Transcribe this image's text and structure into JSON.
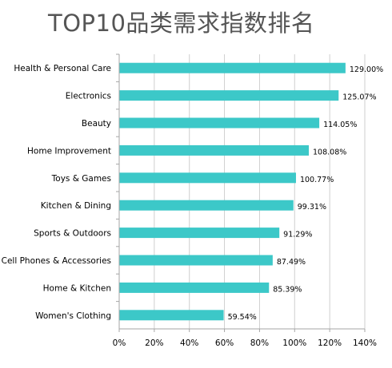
{
  "title": "TOP10品类需求指数排名",
  "colors": {
    "bar": "#3cc8c8",
    "grid": "#cfcfcf",
    "axis": "#a6a6a6"
  },
  "chart_data": {
    "type": "bar",
    "orientation": "horizontal",
    "title": "TOP10品类需求指数排名",
    "categories": [
      "Health & Personal Care",
      "Electronics",
      "Beauty",
      "Home Improvement",
      "Toys & Games",
      "Kitchen & Dining",
      "Sports & Outdoors",
      "Cell Phones & Accessories",
      "Home & Kitchen",
      "Women's Clothing"
    ],
    "values": [
      129.0,
      125.07,
      114.05,
      108.08,
      100.77,
      99.31,
      91.29,
      87.49,
      85.39,
      59.54
    ],
    "value_labels": [
      "129.00%",
      "125.07%",
      "114.05%",
      "108.08%",
      "100.77%",
      "99.31%",
      "91.29%",
      "87.49%",
      "85.39%",
      "59.54%"
    ],
    "xlim": [
      0,
      140
    ],
    "xticks": [
      "0%",
      "20%",
      "40%",
      "60%",
      "80%",
      "100%",
      "120%",
      "140%"
    ],
    "grid": true,
    "legend": "none"
  }
}
